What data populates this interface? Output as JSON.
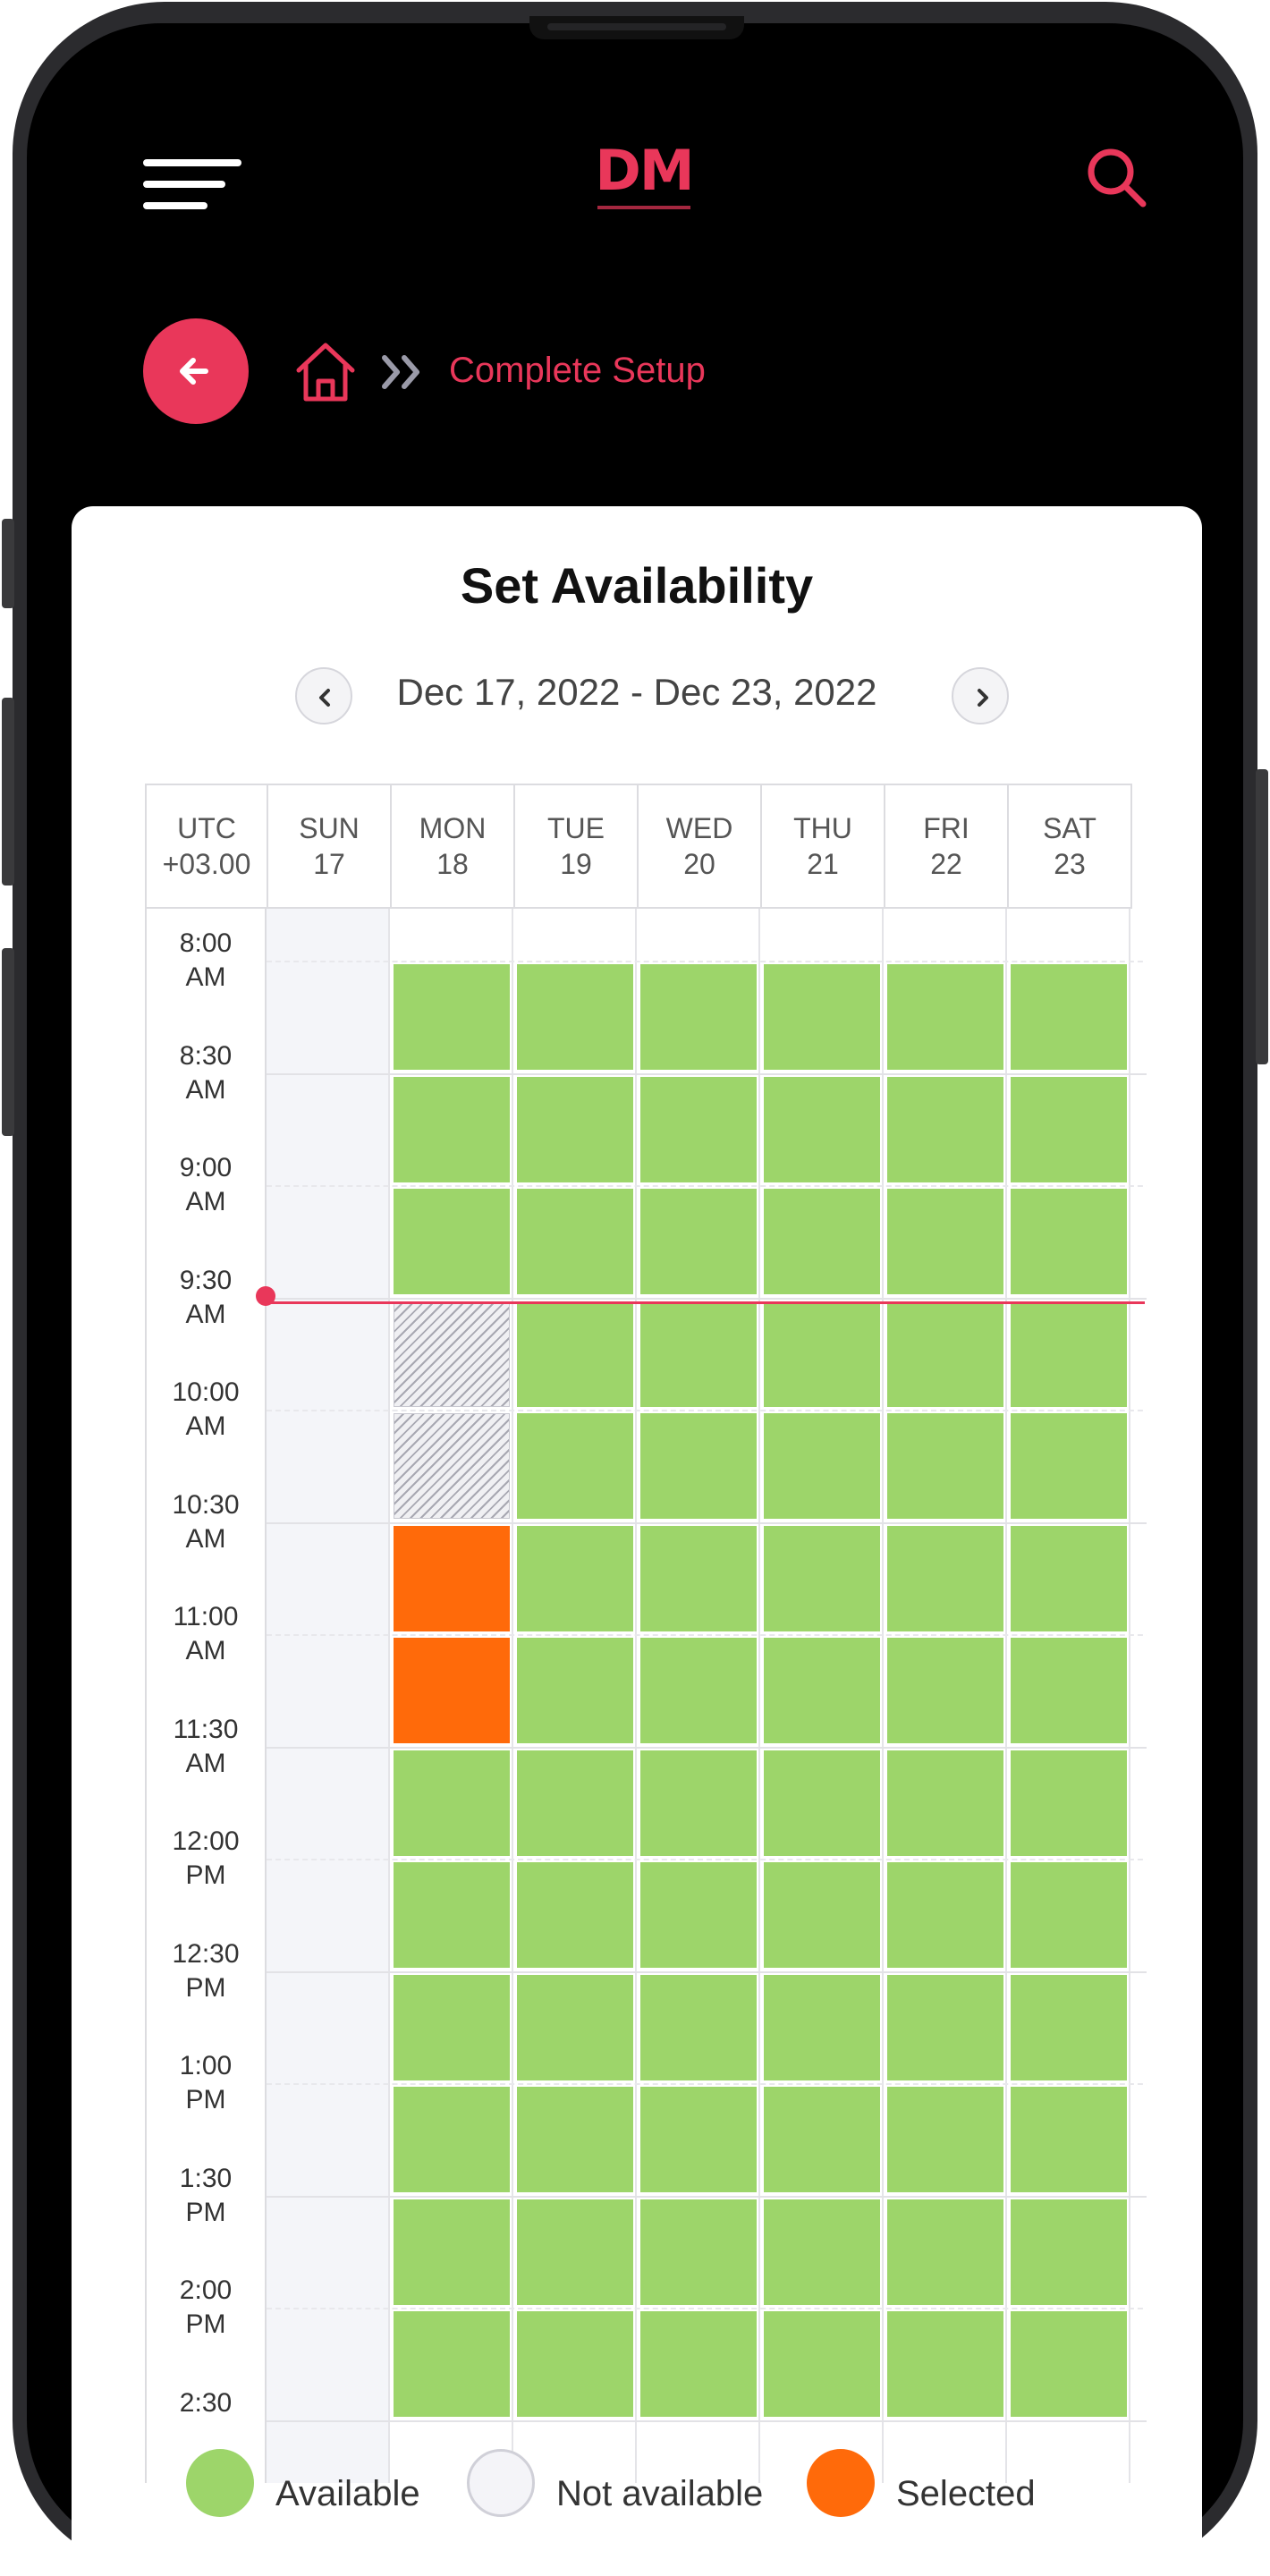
{
  "app": {
    "logo_text": "DM"
  },
  "breadcrumb": {
    "current_label": "Complete Setup"
  },
  "card": {
    "title": "Set Availability",
    "date_range": "Dec 17, 2022 - Dec 23, 2022"
  },
  "grid": {
    "timezone_line1": "UTC",
    "timezone_line2": "+03.00",
    "days": [
      {
        "dow": "SUN",
        "date": "17"
      },
      {
        "dow": "MON",
        "date": "18"
      },
      {
        "dow": "TUE",
        "date": "19"
      },
      {
        "dow": "WED",
        "date": "20"
      },
      {
        "dow": "THU",
        "date": "21"
      },
      {
        "dow": "FRI",
        "date": "22"
      },
      {
        "dow": "SAT",
        "date": "23"
      }
    ],
    "times": [
      {
        "l1": "8:00",
        "l2": "AM"
      },
      {
        "l1": "8:30",
        "l2": "AM"
      },
      {
        "l1": "9:00",
        "l2": "AM"
      },
      {
        "l1": "9:30",
        "l2": "AM"
      },
      {
        "l1": "10:00",
        "l2": "AM"
      },
      {
        "l1": "10:30",
        "l2": "AM"
      },
      {
        "l1": "11:00",
        "l2": "AM"
      },
      {
        "l1": "11:30",
        "l2": "AM"
      },
      {
        "l1": "12:00",
        "l2": "PM"
      },
      {
        "l1": "12:30",
        "l2": "PM"
      },
      {
        "l1": "1:00",
        "l2": "PM"
      },
      {
        "l1": "1:30",
        "l2": "PM"
      },
      {
        "l1": "2:00",
        "l2": "PM"
      },
      {
        "l1": "2:30",
        "l2": ""
      }
    ],
    "slot_states": [
      [
        "none",
        "available",
        "available",
        "available",
        "available",
        "available",
        "available"
      ],
      [
        "none",
        "available",
        "available",
        "available",
        "available",
        "available",
        "available"
      ],
      [
        "none",
        "available",
        "available",
        "available",
        "available",
        "available",
        "available"
      ],
      [
        "none",
        "blocked",
        "available",
        "available",
        "available",
        "available",
        "available"
      ],
      [
        "none",
        "blocked",
        "available",
        "available",
        "available",
        "available",
        "available"
      ],
      [
        "none",
        "selected",
        "available",
        "available",
        "available",
        "available",
        "available"
      ],
      [
        "none",
        "selected",
        "available",
        "available",
        "available",
        "available",
        "available"
      ],
      [
        "none",
        "available",
        "available",
        "available",
        "available",
        "available",
        "available"
      ],
      [
        "none",
        "available",
        "available",
        "available",
        "available",
        "available",
        "available"
      ],
      [
        "none",
        "available",
        "available",
        "available",
        "available",
        "available",
        "available"
      ],
      [
        "none",
        "available",
        "available",
        "available",
        "available",
        "available",
        "available"
      ],
      [
        "none",
        "available",
        "available",
        "available",
        "available",
        "available",
        "available"
      ],
      [
        "none",
        "available",
        "available",
        "available",
        "available",
        "available",
        "available"
      ]
    ]
  },
  "legend": {
    "available": "Available",
    "not_available": "Not available",
    "selected": "Selected"
  },
  "colors": {
    "accent": "#e9375a",
    "available": "#9dd56a",
    "selected": "#ff6a0a",
    "not_available": "#f4f4f8"
  }
}
